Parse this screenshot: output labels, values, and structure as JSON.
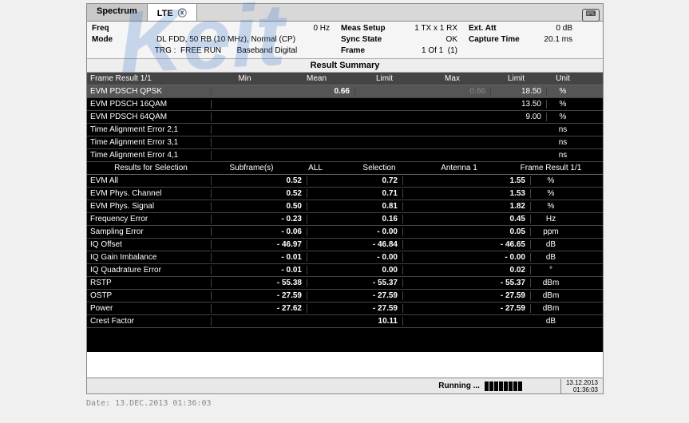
{
  "watermark": "Keit",
  "tabs": {
    "spectrum": "Spectrum",
    "lte": "LTE"
  },
  "info": {
    "freq_label": "Freq",
    "freq_val": "0 Hz",
    "mode_label": "Mode",
    "mode_val": "DL FDD, 50 RB (10 MHz), Normal (CP)",
    "trg": "TRG :  FREE RUN       Baseband Digital",
    "meas_label": "Meas Setup",
    "meas_val": "1 TX x 1 RX",
    "sync_label": "Sync State",
    "sync_val": "OK",
    "frame_label": "Frame",
    "frame_val": "1 Of 1  (1)",
    "ext_label": "Ext. Att",
    "ext_val": "0 dB",
    "cap_label": "Capture Time",
    "cap_val": "20.1 ms"
  },
  "summary_title": "Result Summary",
  "hdr": {
    "frame": "Frame Result 1/1",
    "min": "Min",
    "mean": "Mean",
    "limit": "Limit",
    "max": "Max",
    "limit2": "Limit",
    "unit": "Unit"
  },
  "top": [
    {
      "label": "EVM PDSCH QPSK",
      "mean": "0.66",
      "max": "0.66",
      "limit": "18.50",
      "unit": "%",
      "sel": true,
      "dim_max": true
    },
    {
      "label": "EVM PDSCH 16QAM",
      "limit": "13.50",
      "unit": "%"
    },
    {
      "label": "EVM PDSCH 64QAM",
      "limit": "9.00",
      "unit": "%"
    },
    {
      "label": "Time Alignment Error 2,1",
      "unit": "ns"
    },
    {
      "label": "Time Alignment Error 3,1",
      "unit": "ns"
    },
    {
      "label": "Time Alignment Error 4,1",
      "unit": "ns"
    }
  ],
  "sub": {
    "res": "Results for Selection",
    "sub": "Subframe(s)",
    "all": "ALL",
    "sel": "Selection",
    "ant": "Antenna 1",
    "fr": "Frame Result 1/1"
  },
  "bot": [
    {
      "label": "EVM All",
      "v1": "0.52",
      "v2": "0.72",
      "v3": "1.55",
      "unit": "%"
    },
    {
      "label": "EVM Phys. Channel",
      "v1": "0.52",
      "v2": "0.71",
      "v3": "1.53",
      "unit": "%"
    },
    {
      "label": "EVM Phys. Signal",
      "v1": "0.50",
      "v2": "0.81",
      "v3": "1.82",
      "unit": "%"
    },
    {
      "label": "Frequency Error",
      "v1": "- 0.23",
      "v2": "0.16",
      "v3": "0.45",
      "unit": "Hz"
    },
    {
      "label": "Sampling Error",
      "v1": "- 0.06",
      "v2": "- 0.00",
      "v3": "0.05",
      "unit": "ppm"
    },
    {
      "label": "IQ Offset",
      "v1": "- 46.97",
      "v2": "- 46.84",
      "v3": "- 46.65",
      "unit": "dB"
    },
    {
      "label": "IQ Gain Imbalance",
      "v1": "- 0.01",
      "v2": "- 0.00",
      "v3": "- 0.00",
      "unit": "dB"
    },
    {
      "label": "IQ Quadrature Error",
      "v1": "- 0.01",
      "v2": "0.00",
      "v3": "0.02",
      "unit": "°"
    },
    {
      "label": "RSTP",
      "v1": "- 55.38",
      "v2": "- 55.37",
      "v3": "- 55.37",
      "unit": "dBm"
    },
    {
      "label": "OSTP",
      "v1": "- 27.59",
      "v2": "- 27.59",
      "v3": "- 27.59",
      "unit": "dBm"
    },
    {
      "label": "Power",
      "v1": "- 27.62",
      "v2": "- 27.59",
      "v3": "- 27.59",
      "unit": "dBm"
    },
    {
      "label": "Crest Factor",
      "v2": "10.11",
      "unit": "dB"
    }
  ],
  "status": {
    "run": "Running ...",
    "date": "13.12.2013",
    "time": "01:36:03"
  },
  "stamp": "Date: 13.DEC.2013  01:36:03"
}
